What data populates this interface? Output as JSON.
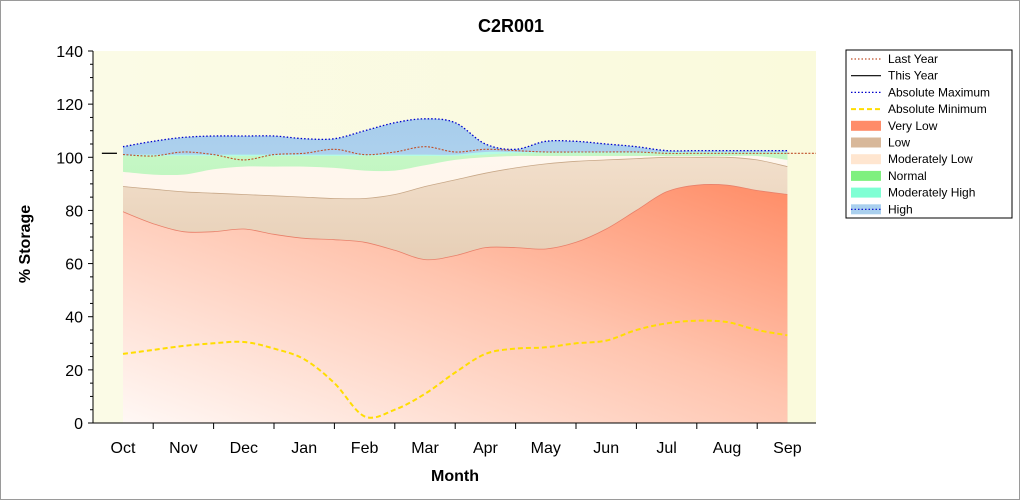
{
  "chart_data": {
    "type": "area",
    "title": "C2R001",
    "xlabel": "Month",
    "ylabel": "% Storage",
    "ylim": [
      0,
      140
    ],
    "yticks": [
      0,
      20,
      40,
      60,
      80,
      100,
      120,
      140
    ],
    "categories": [
      "Oct",
      "Nov",
      "Dec",
      "Jan",
      "Feb",
      "Mar",
      "Apr",
      "May",
      "Jun",
      "Jul",
      "Aug",
      "Sep"
    ],
    "grid": false,
    "legend_position": "right",
    "series": [
      {
        "name": "Last Year",
        "style": "dotted-line",
        "color": "#c0502a",
        "x": [
          0,
          0.5,
          1,
          1.5,
          2,
          2.5,
          3,
          3.5,
          4,
          4.5,
          5,
          5.5,
          6,
          6.5,
          7,
          7.5,
          8,
          8.5,
          9,
          9.5,
          10,
          10.5,
          11
        ],
        "values": [
          101,
          100.5,
          102,
          101,
          99,
          101,
          101.5,
          103,
          101,
          102,
          104,
          102,
          103,
          102.5,
          102,
          102,
          102,
          102,
          101.5,
          101.5,
          101.5,
          101.5,
          101.5
        ]
      },
      {
        "name": "This Year",
        "style": "solid-line",
        "color": "#000000",
        "x": [
          -0.35,
          -0.1
        ],
        "values": [
          101.5,
          101.5
        ]
      },
      {
        "name": "Absolute Maximum",
        "style": "dotted-line",
        "color": "#0000cc",
        "x": [
          0,
          0.5,
          1,
          1.5,
          2,
          2.5,
          3,
          3.5,
          4,
          4.5,
          5,
          5.5,
          6,
          6.5,
          7,
          7.5,
          8,
          8.5,
          9,
          9.5,
          10,
          10.5,
          11
        ],
        "values": [
          104,
          106,
          107.5,
          108,
          108,
          108,
          107,
          107,
          110,
          113,
          114.5,
          113,
          105,
          103,
          106,
          106,
          105,
          104,
          102.5,
          102.5,
          102.5,
          102.5,
          102.5
        ]
      },
      {
        "name": "Absolute Minimum",
        "style": "dashed-line",
        "color": "#ffdd00",
        "x": [
          0,
          0.5,
          1,
          1.5,
          2,
          2.5,
          3,
          3.5,
          4,
          4.5,
          5,
          5.5,
          6,
          6.5,
          7,
          7.5,
          8,
          8.5,
          9,
          9.5,
          10,
          10.5,
          11
        ],
        "values": [
          26,
          27.5,
          29,
          30,
          30.5,
          28,
          24,
          15,
          2.5,
          5,
          11,
          19,
          26,
          28,
          28.5,
          30,
          31,
          35,
          37.5,
          38.5,
          38,
          35,
          33
        ]
      },
      {
        "name": "Very Low",
        "style": "band",
        "color": "#ff8c69",
        "x": [
          0,
          0.5,
          1,
          1.5,
          2,
          2.5,
          3,
          3.5,
          4,
          4.5,
          5,
          5.5,
          6,
          6.5,
          7,
          7.5,
          8,
          8.5,
          9,
          9.5,
          10,
          10.5,
          11
        ],
        "values": [
          79.5,
          75,
          72,
          72,
          73,
          71,
          69.5,
          69,
          68,
          65,
          61.5,
          63,
          66,
          66,
          65.5,
          68,
          73,
          80,
          87,
          89.5,
          89.5,
          87.5,
          86
        ]
      },
      {
        "name": "Low",
        "style": "band",
        "color": "#d8b89a",
        "x": [
          0,
          0.5,
          1,
          1.5,
          2,
          2.5,
          3,
          3.5,
          4,
          4.5,
          5,
          5.5,
          6,
          6.5,
          7,
          7.5,
          8,
          8.5,
          9,
          9.5,
          10,
          10.5,
          11
        ],
        "values": [
          89,
          88,
          87,
          86.5,
          86,
          85.5,
          85,
          84.5,
          84.5,
          86,
          89,
          91.5,
          94,
          96,
          97.5,
          98.5,
          99,
          99.5,
          100,
          100,
          100,
          99,
          96.5
        ]
      },
      {
        "name": "Moderately Low",
        "style": "band",
        "color": "#ffe6d0",
        "x": [
          0,
          0.5,
          1,
          1.5,
          2,
          2.5,
          3,
          3.5,
          4,
          4.5,
          5,
          5.5,
          6,
          6.5,
          7,
          7.5,
          8,
          8.5,
          9,
          9.5,
          10,
          10.5,
          11
        ],
        "values": [
          94.5,
          93.5,
          93.5,
          95.5,
          96.5,
          96.5,
          96.5,
          96,
          95,
          95,
          97,
          99,
          100,
          100.5,
          100.5,
          100.5,
          100.5,
          100.5,
          100.5,
          100.5,
          100.5,
          100.5,
          99
        ]
      },
      {
        "name": "Normal",
        "style": "band",
        "color": "#7ff07f",
        "x": [
          0,
          0.5,
          1,
          1.5,
          2,
          2.5,
          3,
          3.5,
          4,
          4.5,
          5,
          5.5,
          6,
          6.5,
          7,
          7.5,
          8,
          8.5,
          9,
          9.5,
          10,
          10.5,
          11
        ],
        "values": [
          100.5,
          100.5,
          100.5,
          100.5,
          100.5,
          100.5,
          100.5,
          100.5,
          100.5,
          100.5,
          100.5,
          100.5,
          101,
          101.5,
          101.5,
          101.5,
          101.5,
          101.5,
          101.5,
          101.5,
          101.5,
          101.5,
          101.5
        ]
      },
      {
        "name": "Moderately High",
        "style": "band",
        "color": "#7fffd4",
        "x": [
          0,
          0.5,
          1,
          1.5,
          2,
          2.5,
          3,
          3.5,
          4,
          4.5,
          5,
          5.5,
          6,
          6.5,
          7,
          7.5,
          8,
          8.5,
          9,
          9.5,
          10,
          10.5,
          11
        ],
        "values": [
          101,
          101,
          101,
          101,
          101,
          101,
          101,
          101,
          101,
          101,
          101,
          101,
          102,
          102,
          102,
          102,
          102,
          102,
          102,
          102,
          102,
          102,
          102
        ]
      },
      {
        "name": "High",
        "style": "band",
        "color": "#aad0ee",
        "x": [
          0,
          0.5,
          1,
          1.5,
          2,
          2.5,
          3,
          3.5,
          4,
          4.5,
          5,
          5.5,
          6,
          6.5,
          7,
          7.5,
          8,
          8.5,
          9,
          9.5,
          10,
          10.5,
          11
        ],
        "values": [
          104,
          106,
          107.5,
          108,
          108,
          108,
          107,
          107,
          110,
          113,
          114.5,
          113,
          105,
          103,
          106,
          106,
          105,
          104,
          102.5,
          102.5,
          102.5,
          102.5,
          102.5
        ]
      }
    ]
  }
}
